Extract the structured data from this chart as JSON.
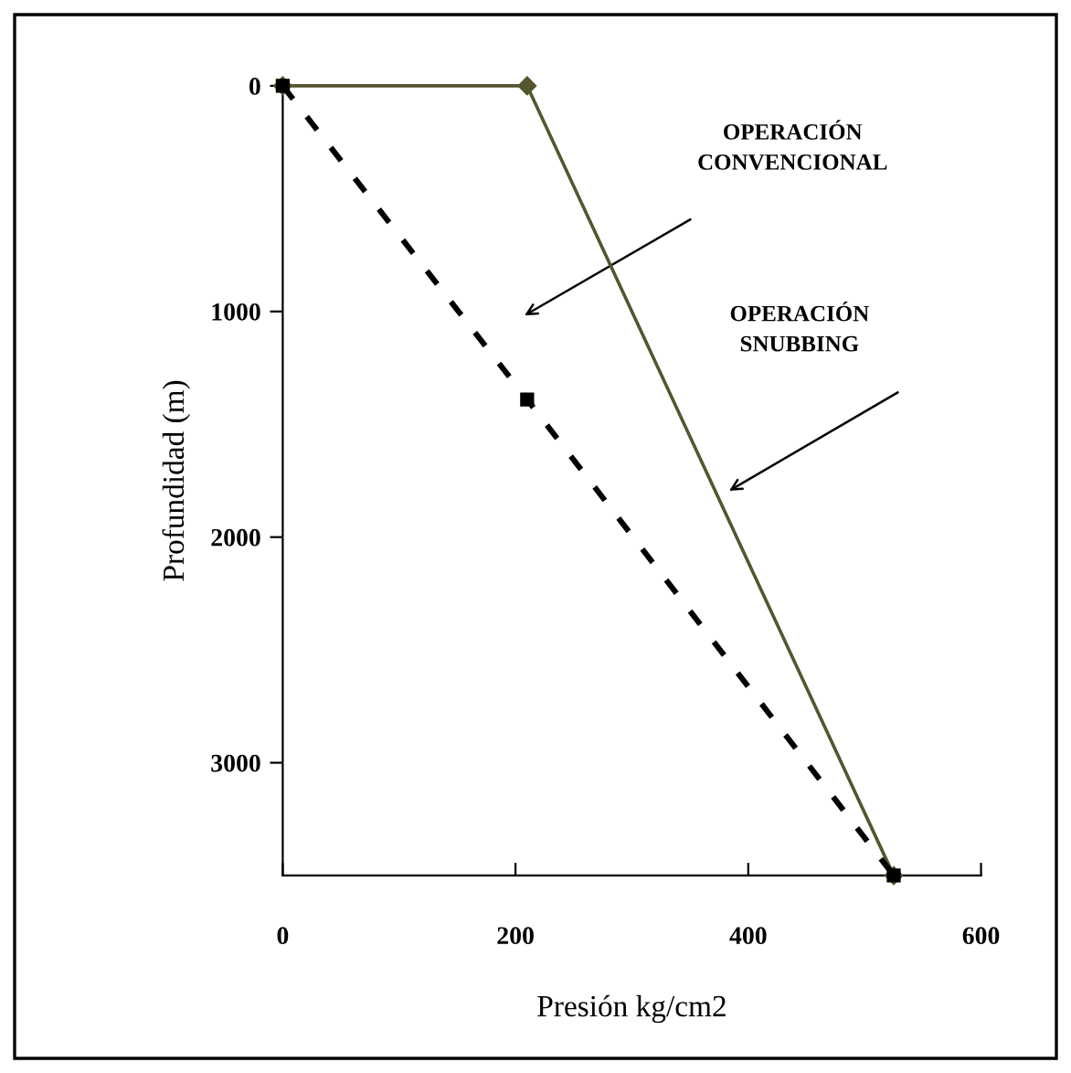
{
  "chart_data": {
    "type": "line",
    "xlabel": "Presión kg/cm2",
    "ylabel": "Profundidad (m)",
    "series": [
      {
        "x": [
          0,
          210,
          525
        ],
        "values": [
          0,
          0,
          3500
        ],
        "color": "#55552f",
        "marker": "diamond",
        "line_style": "solid"
      },
      {
        "x": [
          0,
          210,
          525
        ],
        "values": [
          0,
          1390,
          3500
        ],
        "color": "#000000",
        "marker": "square",
        "line_style": "dashed"
      }
    ],
    "xlim": [
      0,
      600
    ],
    "ylim": [
      3500,
      0
    ],
    "xticks": [
      0,
      200,
      400,
      600
    ],
    "yticks": [
      0,
      1000,
      2000,
      3000
    ],
    "annotations": [
      "OPERACIÓN\nCONVENCIONAL",
      "OPERACIÓN\nSNUBBING"
    ],
    "grid": false,
    "legend": false
  }
}
